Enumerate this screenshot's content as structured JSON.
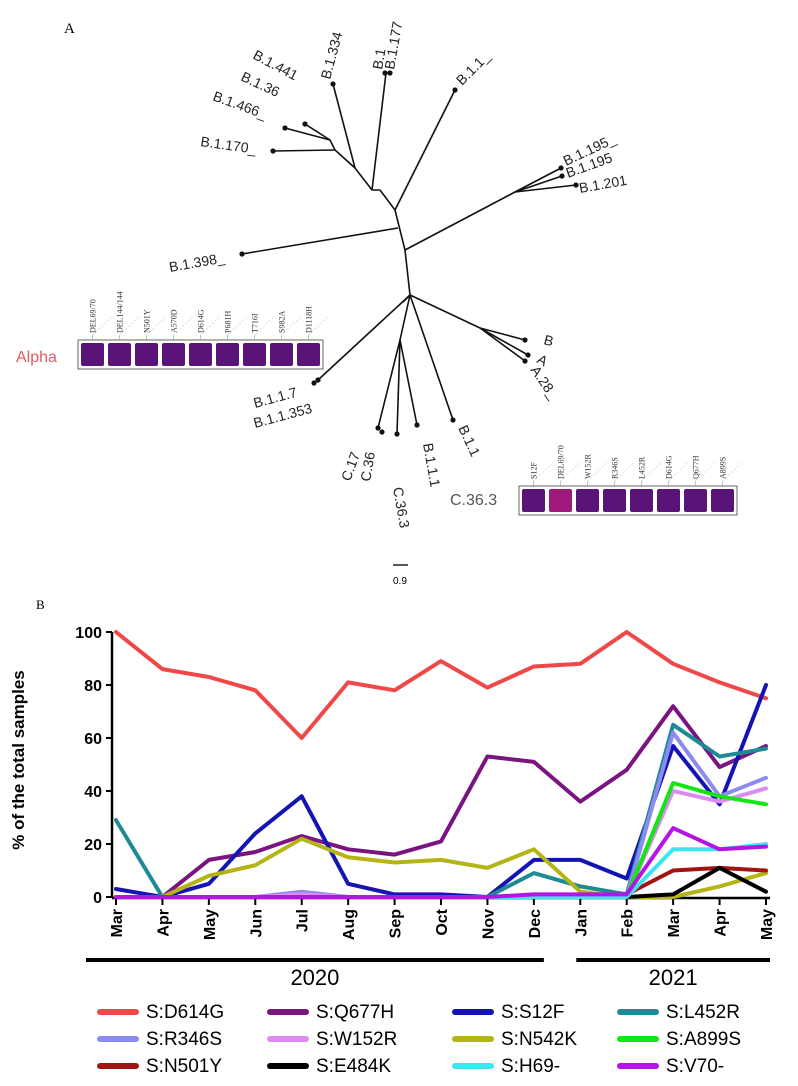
{
  "panel_a": {
    "label": "A",
    "scale_label": "0.9",
    "tips": [
      "B.1.334",
      "B.1",
      "B.1.177",
      "B.1.1_",
      "B.1.441",
      "B.1.36",
      "B.1.466_",
      "B.1.170_",
      "B.1.195_",
      "B.1.195",
      "B.1.201",
      "B.1.398_",
      "B",
      "A",
      "A.28_",
      "B.1.1.7",
      "B.1.1.353",
      "C.17",
      "C.36",
      "C.36.3",
      "B.1.1.1",
      "B.1.1"
    ],
    "alpha": {
      "label": "Alpha",
      "label_color": "#e05a64",
      "mutations": [
        "DEL69/70",
        "DEL144/144",
        "N501Y",
        "A570D",
        "D614G",
        "P681H",
        "T716I",
        "S982A",
        "D1118H"
      ],
      "cell_color": "#5a1478"
    },
    "c363": {
      "label": "C.36.3",
      "mutations": [
        "S12F",
        "DEL69/70",
        "W152R",
        "R346S",
        "L452R",
        "D614G",
        "Q677H",
        "A899S"
      ],
      "cell_color": "#5a1478",
      "highlight_color": "#a0187a"
    }
  },
  "chart_data": {
    "type": "line",
    "panel_label": "B",
    "ylabel": "% of the total samples",
    "xlabel": "",
    "ylim": [
      0,
      100
    ],
    "yticks": [
      0,
      20,
      40,
      60,
      80,
      100
    ],
    "categories": [
      "Mar",
      "Apr",
      "May",
      "Jun",
      "Jul",
      "Aug",
      "Sep",
      "Oct",
      "Nov",
      "Dec",
      "Jan",
      "Feb",
      "Mar",
      "Apr",
      "May"
    ],
    "year_groups": [
      {
        "label": "2020",
        "from": 0,
        "to": 9
      },
      {
        "label": "2021",
        "from": 10,
        "to": 14
      }
    ],
    "series": [
      {
        "name": "S:D614G",
        "color": "#f04848",
        "values": [
          100,
          86,
          83,
          78,
          60,
          81,
          78,
          89,
          79,
          87,
          88,
          100,
          88,
          81,
          75
        ]
      },
      {
        "name": "S:Q677H",
        "color": "#7a1480",
        "values": [
          0,
          0,
          14,
          17,
          23,
          18,
          16,
          21,
          53,
          51,
          36,
          48,
          72,
          49,
          57
        ]
      },
      {
        "name": "S:S12F",
        "color": "#1414b4",
        "values": [
          3,
          0,
          5,
          24,
          38,
          5,
          1,
          1,
          0,
          14,
          14,
          7,
          57,
          35,
          80
        ]
      },
      {
        "name": "S:L452R",
        "color": "#1e8a96",
        "values": [
          29,
          0,
          0,
          0,
          0,
          0,
          0,
          0,
          0,
          9,
          4,
          1,
          65,
          53,
          56
        ]
      },
      {
        "name": "S:R346S",
        "color": "#8c8cf0",
        "values": [
          0,
          0,
          0,
          0,
          2,
          0,
          0,
          0,
          0,
          0,
          0,
          0,
          62,
          38,
          45
        ]
      },
      {
        "name": "S:W152R",
        "color": "#dc8cf0",
        "values": [
          0,
          0,
          0,
          0,
          1,
          0,
          0,
          0,
          0,
          0,
          0,
          0,
          40,
          36,
          41
        ]
      },
      {
        "name": "S:N542K",
        "color": "#b4b414",
        "values": [
          0,
          0,
          8,
          12,
          22,
          15,
          13,
          14,
          11,
          18,
          2,
          0,
          0,
          4,
          9
        ]
      },
      {
        "name": "S:A899S",
        "color": "#14e614",
        "values": [
          0,
          0,
          0,
          0,
          0,
          0,
          0,
          0,
          0,
          0,
          0,
          0,
          43,
          38,
          35
        ]
      },
      {
        "name": "S:N501Y",
        "color": "#a01414",
        "values": [
          0,
          0,
          0,
          0,
          0,
          0,
          0,
          0,
          0,
          0,
          0,
          1,
          10,
          11,
          10
        ]
      },
      {
        "name": "S:E484K",
        "color": "#000000",
        "values": [
          0,
          0,
          0,
          0,
          0,
          0,
          0,
          0,
          0,
          0,
          0,
          0,
          1,
          11,
          2
        ]
      },
      {
        "name": "S:H69-",
        "color": "#3ce6f0",
        "values": [
          0,
          0,
          0,
          0,
          0,
          0,
          0,
          0,
          0,
          0,
          0,
          0,
          18,
          18,
          20
        ]
      },
      {
        "name": "S:V70-",
        "color": "#b414e6",
        "values": [
          0,
          0,
          0,
          0,
          0,
          0,
          0,
          0,
          0,
          1,
          1,
          1,
          26,
          18,
          19
        ]
      }
    ]
  }
}
